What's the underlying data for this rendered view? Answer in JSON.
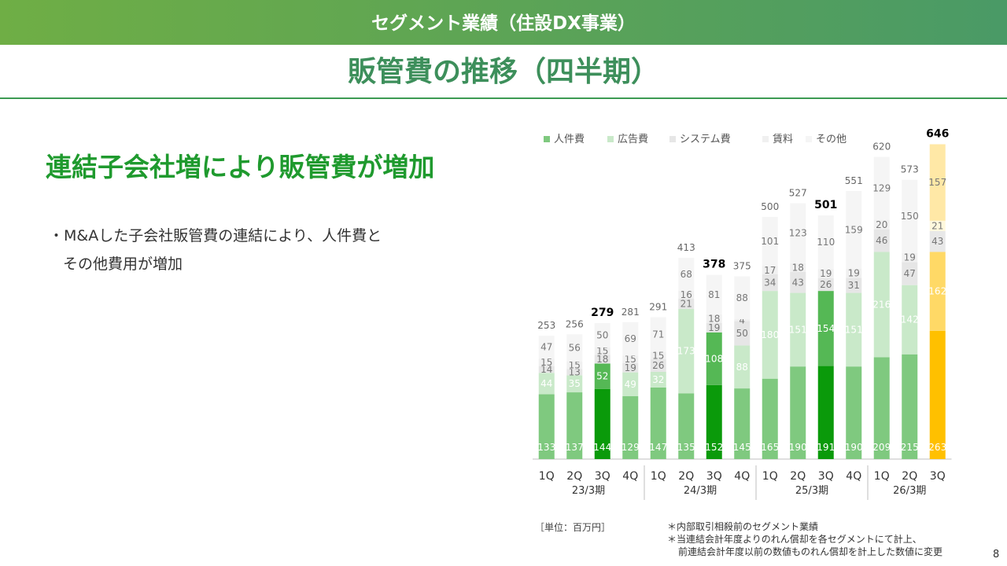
{
  "header": {
    "section_title": "セグメント業績（住設DX事業）",
    "page_title": "販管費の推移（四半期）"
  },
  "main": {
    "headline": "連結子会社増により販管費が増加",
    "bullet_line1": "・M&Aした子会社販管費の連結により、人件費と",
    "bullet_line2": "その他費用が増加"
  },
  "footer": {
    "unit": "［単位：百万円］",
    "note1": "＊内部取引相殺前のセグメント業績",
    "note2": "＊当連結会計年度よりのれん償却を各セグメントにて計上、",
    "note3": "前連結会計年度以前の数値ものれん償却を計上した数値に変更",
    "page_number": "8"
  },
  "chart_data": {
    "type": "bar",
    "stacked": true,
    "categories": [
      "1Q",
      "2Q",
      "3Q",
      "4Q",
      "1Q",
      "2Q",
      "3Q",
      "4Q",
      "1Q",
      "2Q",
      "3Q",
      "4Q",
      "1Q",
      "2Q",
      "3Q"
    ],
    "groups": [
      {
        "label": "23/3期",
        "count": 4
      },
      {
        "label": "24/3期",
        "count": 4
      },
      {
        "label": "25/3期",
        "count": 4
      },
      {
        "label": "26/3期",
        "count": 3
      }
    ],
    "series": [
      {
        "name": "人件費",
        "values": [
          133,
          137,
          144,
          129,
          147,
          135,
          152,
          145,
          165,
          190,
          191,
          190,
          209,
          215,
          263
        ],
        "color": "#7fc97f"
      },
      {
        "name": "広告費",
        "values": [
          44,
          35,
          52,
          49,
          32,
          173,
          108,
          88,
          180,
          151,
          154,
          151,
          216,
          142,
          162
        ],
        "color": "#c9e9c9"
      },
      {
        "name": "システム費",
        "values": [
          14,
          13,
          18,
          19,
          26,
          21,
          19,
          50,
          34,
          43,
          26,
          31,
          46,
          47,
          43
        ],
        "color": "#e6e6e6"
      },
      {
        "name": "賃料",
        "values": [
          15,
          15,
          15,
          15,
          15,
          16,
          18,
          4,
          17,
          18,
          19,
          19,
          20,
          19,
          21
        ],
        "color": "#f0f0f0"
      },
      {
        "name": "その他",
        "values": [
          47,
          56,
          50,
          69,
          71,
          68,
          81,
          88,
          101,
          123,
          110,
          159,
          129,
          150,
          157
        ],
        "color": "#f5f5f5"
      }
    ],
    "totals": [
      253,
      256,
      279,
      281,
      291,
      413,
      378,
      375,
      500,
      527,
      501,
      551,
      620,
      573,
      646
    ],
    "emphasized_totals": [
      2,
      6,
      10,
      14
    ],
    "highlight_colors": {
      "q3_labor": "#0a9a0a",
      "q3_ad": "#55b855",
      "latest_labor": "#ffc000",
      "latest_ad": "#ffd966",
      "latest_system": "#e8e8e8",
      "latest_rent": "#fff8dd",
      "latest_other": "#ffe8a6"
    },
    "ylim": [
      0,
      700
    ],
    "legend_position": "top",
    "xlabel": "",
    "ylabel": ""
  }
}
